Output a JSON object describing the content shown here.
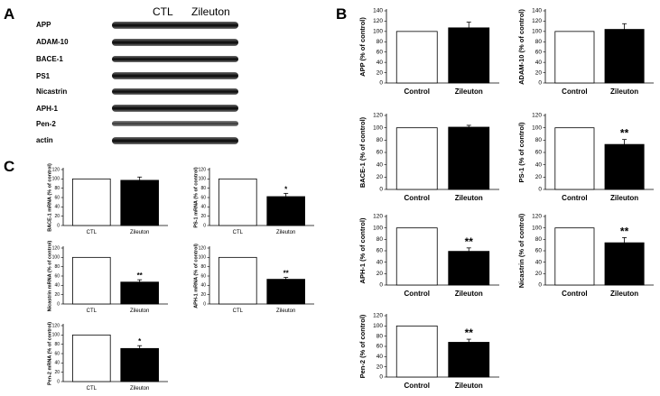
{
  "panels": {
    "a": "A",
    "b": "B",
    "c": "C"
  },
  "blot": {
    "columns": [
      "CTL",
      "Zileuton"
    ],
    "rows": [
      "APP",
      "ADAM-10",
      "BACE-1",
      "PS1",
      "Nicastrin",
      "APH-1",
      "Pen-2",
      "actin"
    ]
  },
  "chart_data": [
    {
      "type": "bar",
      "panel": "B",
      "categories": [
        "Control",
        "Zileuton"
      ],
      "values": [
        100,
        107
      ],
      "errors": [
        0,
        11
      ],
      "ylabel": "APP (% of control)",
      "ylim": [
        0,
        140
      ],
      "yticks": [
        0,
        20,
        40,
        60,
        80,
        100,
        120,
        140
      ],
      "sig": [
        "",
        ""
      ]
    },
    {
      "type": "bar",
      "panel": "B",
      "categories": [
        "Control",
        "Zileuton"
      ],
      "values": [
        100,
        104
      ],
      "errors": [
        0,
        11
      ],
      "ylabel": "ADAM-10 (% of control)",
      "ylim": [
        0,
        140
      ],
      "yticks": [
        0,
        20,
        40,
        60,
        80,
        100,
        120,
        140
      ],
      "sig": [
        "",
        ""
      ]
    },
    {
      "type": "bar",
      "panel": "B",
      "categories": [
        "Control",
        "Zileuton"
      ],
      "values": [
        100,
        101
      ],
      "errors": [
        0,
        3
      ],
      "ylabel": "BACE-1 (% of control)",
      "ylim": [
        0,
        120
      ],
      "yticks": [
        0,
        20,
        40,
        60,
        80,
        100,
        120
      ],
      "sig": [
        "",
        ""
      ]
    },
    {
      "type": "bar",
      "panel": "B",
      "categories": [
        "Control",
        "Zileuton"
      ],
      "values": [
        100,
        73
      ],
      "errors": [
        0,
        8
      ],
      "ylabel": "PS-1 (% of control)",
      "ylim": [
        0,
        120
      ],
      "yticks": [
        0,
        20,
        40,
        60,
        80,
        100,
        120
      ],
      "sig": [
        "",
        "**"
      ]
    },
    {
      "type": "bar",
      "panel": "B",
      "categories": [
        "Control",
        "Zileuton"
      ],
      "values": [
        100,
        59
      ],
      "errors": [
        0,
        6
      ],
      "ylabel": "APH-1 (% of control)",
      "ylim": [
        0,
        120
      ],
      "yticks": [
        0,
        20,
        40,
        60,
        80,
        100,
        120
      ],
      "sig": [
        "",
        "**"
      ]
    },
    {
      "type": "bar",
      "panel": "B",
      "categories": [
        "Control",
        "Zileuton"
      ],
      "values": [
        100,
        74
      ],
      "errors": [
        0,
        9
      ],
      "ylabel": "Nicastrin (% of control)",
      "ylim": [
        0,
        120
      ],
      "yticks": [
        0,
        20,
        40,
        60,
        80,
        100,
        120
      ],
      "sig": [
        "",
        "**"
      ]
    },
    {
      "type": "bar",
      "panel": "B",
      "categories": [
        "Control",
        "Zileuton"
      ],
      "values": [
        100,
        68
      ],
      "errors": [
        0,
        6
      ],
      "ylabel": "Pen-2 (% of control)",
      "ylim": [
        0,
        120
      ],
      "yticks": [
        0,
        20,
        40,
        60,
        80,
        100,
        120
      ],
      "sig": [
        "",
        "**"
      ]
    },
    {
      "type": "bar",
      "panel": "C",
      "categories": [
        "CTL",
        "Zileuton"
      ],
      "values": [
        100,
        97
      ],
      "errors": [
        0,
        7
      ],
      "ylabel": "BACE-1 mRNA (% of control)",
      "ylim": [
        0,
        120
      ],
      "yticks": [
        0,
        20,
        40,
        60,
        80,
        100,
        120
      ],
      "sig": [
        "",
        ""
      ]
    },
    {
      "type": "bar",
      "panel": "C",
      "categories": [
        "CTL",
        "Zileuton"
      ],
      "values": [
        100,
        62
      ],
      "errors": [
        0,
        7
      ],
      "ylabel": "PS-1 mRNA (% of control)",
      "ylim": [
        0,
        120
      ],
      "yticks": [
        0,
        20,
        40,
        60,
        80,
        100,
        120
      ],
      "sig": [
        "",
        "*"
      ]
    },
    {
      "type": "bar",
      "panel": "C",
      "categories": [
        "CTL",
        "Zileuton"
      ],
      "values": [
        100,
        47
      ],
      "errors": [
        0,
        5
      ],
      "ylabel": "Nicastrin mRNA (% of control)",
      "ylim": [
        0,
        120
      ],
      "yticks": [
        0,
        20,
        40,
        60,
        80,
        100,
        120
      ],
      "sig": [
        "",
        "**"
      ]
    },
    {
      "type": "bar",
      "panel": "C",
      "categories": [
        "CTL",
        "Zileuton"
      ],
      "values": [
        100,
        53
      ],
      "errors": [
        0,
        4
      ],
      "ylabel": "APH-1 mRNA (% of control)",
      "ylim": [
        0,
        120
      ],
      "yticks": [
        0,
        20,
        40,
        60,
        80,
        100,
        120
      ],
      "sig": [
        "",
        "**"
      ]
    },
    {
      "type": "bar",
      "panel": "C",
      "categories": [
        "CTL",
        "Zileuton"
      ],
      "values": [
        100,
        71
      ],
      "errors": [
        0,
        6
      ],
      "ylabel": "Pen-2 mRNA (% of control)",
      "ylim": [
        0,
        120
      ],
      "yticks": [
        0,
        20,
        40,
        60,
        80,
        100,
        120
      ],
      "sig": [
        "",
        "*"
      ]
    }
  ]
}
